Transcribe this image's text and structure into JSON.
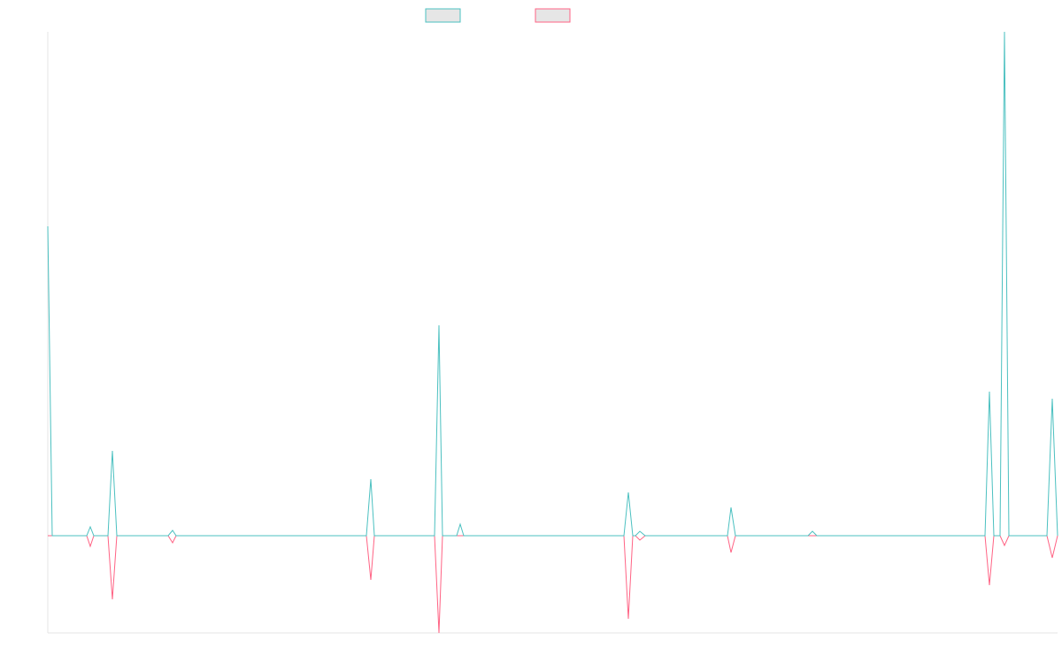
{
  "chart_data": {
    "type": "line",
    "title": "",
    "xlabel": "",
    "ylabel": "",
    "grid": false,
    "legend_placement": "top-center",
    "ylim": [
      -110,
      570
    ],
    "series": [
      {
        "color": "#4bc0c0",
        "points": [
          [
            0,
            350
          ],
          [
            5,
            0
          ],
          [
            44,
            0
          ],
          [
            48,
            10
          ],
          [
            52,
            0
          ],
          [
            68,
            0
          ],
          [
            73,
            96
          ],
          [
            78,
            0
          ],
          [
            136,
            0
          ],
          [
            141,
            6
          ],
          [
            145,
            0
          ],
          [
            360,
            0
          ],
          [
            365,
            64
          ],
          [
            369,
            0
          ],
          [
            437,
            0
          ],
          [
            442,
            238
          ],
          [
            446,
            0
          ],
          [
            462,
            0
          ],
          [
            466,
            13
          ],
          [
            470,
            0
          ],
          [
            651,
            0
          ],
          [
            656,
            49
          ],
          [
            661,
            0
          ],
          [
            664,
            0
          ],
          [
            669,
            5
          ],
          [
            675,
            0
          ],
          [
            768,
            0
          ],
          [
            772,
            32
          ],
          [
            777,
            0
          ],
          [
            859,
            0
          ],
          [
            864,
            5
          ],
          [
            869,
            0
          ],
          [
            1059,
            0
          ],
          [
            1064,
            163
          ],
          [
            1069,
            0
          ],
          [
            1076,
            0
          ],
          [
            1081,
            570
          ],
          [
            1086,
            0
          ],
          [
            1129,
            0
          ],
          [
            1135,
            155
          ],
          [
            1141,
            0
          ]
        ]
      },
      {
        "color": "#ff6384",
        "points": [
          [
            0,
            0
          ],
          [
            44,
            0
          ],
          [
            48,
            -12
          ],
          [
            52,
            0
          ],
          [
            68,
            0
          ],
          [
            73,
            -72
          ],
          [
            78,
            0
          ],
          [
            136,
            0
          ],
          [
            141,
            -8
          ],
          [
            145,
            0
          ],
          [
            360,
            0
          ],
          [
            365,
            -50
          ],
          [
            369,
            0
          ],
          [
            437,
            0
          ],
          [
            442,
            -110
          ],
          [
            446,
            0
          ],
          [
            651,
            0
          ],
          [
            656,
            -94
          ],
          [
            661,
            0
          ],
          [
            664,
            0
          ],
          [
            669,
            -5
          ],
          [
            675,
            0
          ],
          [
            768,
            0
          ],
          [
            772,
            -19
          ],
          [
            777,
            0
          ],
          [
            1059,
            0
          ],
          [
            1064,
            -56
          ],
          [
            1069,
            0
          ],
          [
            1076,
            0
          ],
          [
            1081,
            -11
          ],
          [
            1086,
            0
          ],
          [
            1129,
            0
          ],
          [
            1135,
            -25
          ],
          [
            1141,
            0
          ]
        ]
      }
    ],
    "legend": [
      {
        "color": "#4bc0c0",
        "fill": "#e6e6e6"
      },
      {
        "color": "#ff6384",
        "fill": "#e6e6e6"
      }
    ]
  }
}
